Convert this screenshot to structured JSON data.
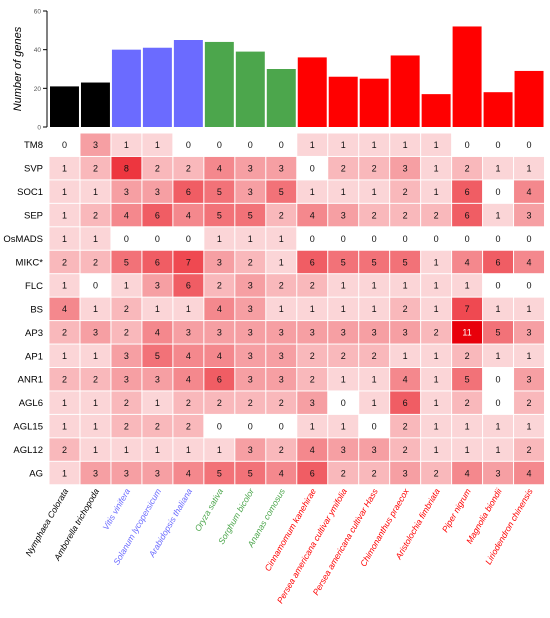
{
  "chart_data": [
    {
      "type": "bar",
      "ylabel": "Number of genes",
      "ylim": [
        0,
        60
      ],
      "yticks": [
        "0",
        "20",
        "40",
        "60"
      ],
      "categories": [
        "Nymphaea Colorata",
        "Amborella trichopoda",
        "Vitis vinifera",
        "Solanum lycopersicum",
        "Arabidopsis thaliana",
        "Oryza sativa",
        "Sorghum bicolor",
        "Ananas comosus",
        "Cinnamomum kanehirae",
        "Persea americana cultivar ymifolia",
        "Persea americana cultivar Hass",
        "Chimonanthus praecox",
        "Aristolochia fimbriata",
        "Piper nigrum",
        "Magnolia biondii",
        "Liriodendron chinensis"
      ],
      "values": [
        21,
        23,
        40,
        41,
        45,
        44,
        39,
        30,
        36,
        26,
        25,
        37,
        17,
        52,
        18,
        29
      ],
      "group_colors": [
        "#000000",
        "#000000",
        "#6b6bff",
        "#6b6bff",
        "#6b6bff",
        "#4ca64c",
        "#4ca64c",
        "#4ca64c",
        "#ff0000",
        "#ff0000",
        "#ff0000",
        "#ff0000",
        "#ff0000",
        "#ff0000",
        "#ff0000",
        "#ff0000"
      ]
    },
    {
      "type": "heatmap",
      "rows": [
        "TM8",
        "SVP",
        "SOC1",
        "SEP",
        "OsMADS",
        "MIKC*",
        "FLC",
        "BS",
        "AP3",
        "AP1",
        "ANR1",
        "AGL6",
        "AGL15",
        "AGL12",
        "AG"
      ],
      "columns": [
        "Nymphaea Colorata",
        "Amborella trichopoda",
        "Vitis vinifera",
        "Solanum lycopersicum",
        "Arabidopsis thaliana",
        "Oryza sativa",
        "Sorghum bicolor",
        "Ananas comosus",
        "Cinnamomum kanehirae",
        "Persea americana cultivar ymifolia",
        "Persea americana cultivar Hass",
        "Chimonanthus praecox",
        "Aristolochia fimbriata",
        "Piper nigrum",
        "Magnolia biondii",
        "Liriodendron chinensis"
      ],
      "values": [
        [
          0,
          3,
          1,
          1,
          0,
          0,
          0,
          0,
          1,
          1,
          1,
          1,
          1,
          0,
          0,
          0
        ],
        [
          1,
          2,
          8,
          2,
          2,
          4,
          3,
          3,
          0,
          2,
          2,
          3,
          1,
          2,
          1,
          1
        ],
        [
          1,
          1,
          3,
          3,
          6,
          5,
          3,
          5,
          1,
          1,
          1,
          2,
          1,
          6,
          0,
          4
        ],
        [
          1,
          2,
          4,
          6,
          4,
          5,
          5,
          2,
          4,
          3,
          2,
          2,
          2,
          6,
          1,
          3
        ],
        [
          1,
          1,
          0,
          0,
          0,
          1,
          1,
          1,
          0,
          0,
          0,
          0,
          0,
          0,
          0,
          0
        ],
        [
          2,
          2,
          5,
          6,
          7,
          3,
          2,
          1,
          6,
          5,
          5,
          5,
          1,
          4,
          6,
          4
        ],
        [
          1,
          0,
          1,
          3,
          6,
          2,
          3,
          2,
          2,
          1,
          1,
          1,
          1,
          1,
          0,
          0
        ],
        [
          4,
          1,
          2,
          1,
          1,
          4,
          3,
          1,
          1,
          1,
          1,
          2,
          1,
          7,
          1,
          1
        ],
        [
          2,
          3,
          2,
          4,
          3,
          3,
          3,
          3,
          3,
          3,
          3,
          3,
          2,
          11,
          5,
          3
        ],
        [
          1,
          1,
          3,
          5,
          4,
          4,
          3,
          3,
          2,
          2,
          2,
          1,
          1,
          2,
          1,
          1
        ],
        [
          2,
          2,
          3,
          3,
          4,
          6,
          3,
          3,
          2,
          1,
          1,
          4,
          1,
          5,
          0,
          3
        ],
        [
          1,
          1,
          2,
          1,
          2,
          2,
          2,
          2,
          3,
          0,
          1,
          6,
          1,
          2,
          0,
          2
        ],
        [
          1,
          1,
          2,
          2,
          2,
          0,
          0,
          0,
          1,
          1,
          0,
          2,
          1,
          1,
          1,
          1
        ],
        [
          2,
          1,
          1,
          1,
          1,
          1,
          3,
          2,
          4,
          3,
          3,
          2,
          1,
          1,
          1,
          2
        ],
        [
          1,
          3,
          3,
          3,
          4,
          5,
          5,
          4,
          6,
          2,
          2,
          3,
          2,
          4,
          3,
          4
        ]
      ],
      "colorscale": {
        "min": 0,
        "max": 11,
        "low": "#ffffff",
        "high": "#e8000b"
      }
    }
  ]
}
